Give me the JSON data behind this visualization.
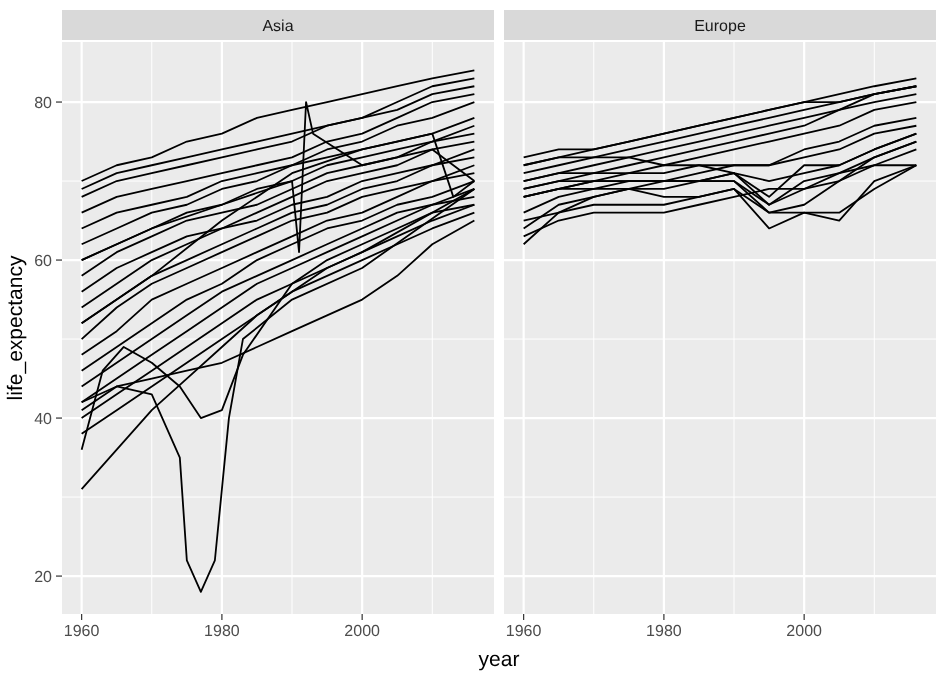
{
  "chart_data": [
    {
      "type": "line",
      "title": "Asia",
      "xlabel": "year",
      "ylabel": "life_expectancy",
      "xlim": [
        1957.2,
        2018.8
      ],
      "ylim": [
        15.2,
        87.6
      ],
      "xticks": [
        1960,
        1980,
        2000
      ],
      "yticks": [
        20,
        40,
        60,
        80
      ],
      "grid": true,
      "x": [
        1960,
        1965,
        1970,
        1975,
        1980,
        1985,
        1990,
        1995,
        2000,
        2005,
        2010,
        2016
      ],
      "series": [
        {
          "color": "#000000",
          "values": [
            70,
            72,
            73,
            75,
            76,
            78,
            79,
            80,
            81,
            82,
            83,
            84
          ]
        },
        {
          "color": "#000000",
          "values": [
            69,
            71,
            72,
            73,
            74,
            75,
            76,
            77,
            78,
            80,
            82,
            83
          ]
        },
        {
          "color": "#000000",
          "values": [
            68,
            70,
            71,
            72,
            73,
            74,
            75,
            77,
            78,
            79,
            81,
            82
          ]
        },
        {
          "color": "#000000",
          "values": [
            66,
            68,
            69,
            70,
            71,
            72,
            73,
            75,
            76,
            78,
            80,
            81
          ]
        },
        {
          "color": "#000000",
          "values": [
            64,
            66,
            67,
            68,
            70,
            71,
            72,
            74,
            75,
            77,
            78,
            80
          ]
        },
        {
          "color": "#000000",
          "values": [
            62,
            64,
            66,
            67,
            69,
            70,
            72,
            73,
            74,
            75,
            76,
            78
          ]
        },
        {
          "color": "#000000",
          "values": [
            60,
            62,
            64,
            66,
            67,
            69,
            70,
            72,
            73,
            74,
            75,
            77
          ]
        },
        {
          "color": "#000000",
          "values": [
            58,
            61,
            63,
            65,
            66,
            67,
            69,
            71,
            72,
            73,
            75,
            76
          ]
        },
        {
          "color": "#000000",
          "values": [
            56,
            59,
            61,
            63,
            64,
            66,
            68,
            70,
            71,
            72,
            74,
            75
          ]
        },
        {
          "color": "#000000",
          "values": [
            54,
            57,
            60,
            62,
            64,
            65,
            67,
            68,
            70,
            71,
            72,
            74
          ]
        },
        {
          "color": "#000000",
          "values": [
            52,
            55,
            58,
            60,
            62,
            64,
            66,
            67,
            69,
            70,
            72,
            73
          ]
        },
        {
          "color": "#000000",
          "values": [
            50,
            54,
            57,
            59,
            61,
            63,
            65,
            66,
            68,
            69,
            70,
            72
          ]
        },
        {
          "color": "#000000",
          "values": [
            48,
            51,
            55,
            57,
            59,
            61,
            63,
            65,
            66,
            68,
            70,
            71
          ]
        },
        {
          "color": "#000000",
          "values": [
            46,
            49,
            52,
            55,
            57,
            60,
            62,
            64,
            65,
            67,
            68,
            70
          ]
        },
        {
          "color": "#000000",
          "values": [
            44,
            47,
            50,
            53,
            56,
            58,
            60,
            62,
            64,
            66,
            67,
            69
          ]
        },
        {
          "color": "#000000",
          "values": [
            42,
            45,
            48,
            51,
            54,
            57,
            59,
            61,
            63,
            65,
            67,
            68
          ]
        },
        {
          "color": "#000000",
          "values": [
            40,
            43,
            46,
            49,
            52,
            55,
            57,
            60,
            62,
            64,
            66,
            67
          ]
        },
        {
          "color": "#000000",
          "values": [
            38,
            41,
            44,
            47,
            50,
            53,
            56,
            58,
            60,
            62,
            64,
            66
          ]
        },
        {
          "color": "#000000",
          "values": [
            42,
            44,
            45,
            46,
            47,
            49,
            51,
            53,
            55,
            58,
            62,
            65
          ]
        },
        {
          "color": "#000000",
          "values": [
            31,
            36,
            41,
            45,
            49,
            53,
            56,
            59,
            61,
            63,
            65,
            67
          ]
        },
        {
          "color": "#000000",
          "x": [
            1960,
            1965,
            1970,
            1974,
            1975,
            1977,
            1979,
            1981,
            1983,
            1990,
            2000,
            2016
          ],
          "values": [
            41,
            44,
            43,
            35,
            22,
            18,
            22,
            40,
            50,
            55,
            59,
            69
          ]
        },
        {
          "color": "#000000",
          "x": [
            1960,
            1963,
            1966,
            1970,
            1974,
            1977,
            1980,
            1983,
            1990,
            2000,
            2016
          ],
          "values": [
            36,
            46,
            49,
            47,
            44,
            40,
            41,
            48,
            57,
            61,
            69
          ]
        },
        {
          "color": "#000000",
          "x": [
            1960,
            1970,
            1980,
            1990,
            1991,
            1992,
            1993,
            2000,
            2010,
            2016
          ],
          "values": [
            60,
            64,
            67,
            70,
            61,
            80,
            76,
            72,
            74,
            70
          ]
        },
        {
          "color": "#000000",
          "x": [
            1960,
            1970,
            1980,
            1990,
            2000,
            2010,
            2013,
            2016
          ],
          "values": [
            52,
            58,
            65,
            71,
            74,
            76,
            68,
            70
          ]
        }
      ]
    },
    {
      "type": "line",
      "title": "Europe",
      "xlim": [
        1957.2,
        2018.8
      ],
      "ylim": [
        15.2,
        87.6
      ],
      "xticks": [
        1960,
        1980,
        2000
      ],
      "yticks": [
        20,
        40,
        60,
        80
      ],
      "grid": true,
      "tick_labels": "x",
      "x": [
        1960,
        1965,
        1970,
        1975,
        1980,
        1985,
        1990,
        1995,
        2000,
        2005,
        2010,
        2016
      ],
      "series": [
        {
          "color": "#000000",
          "values": [
            73,
            74,
            74,
            75,
            76,
            77,
            78,
            79,
            80,
            81,
            82,
            83
          ]
        },
        {
          "color": "#000000",
          "values": [
            72,
            73,
            74,
            75,
            76,
            77,
            78,
            79,
            80,
            80,
            81,
            82
          ]
        },
        {
          "color": "#000000",
          "values": [
            71,
            72,
            73,
            74,
            75,
            76,
            77,
            78,
            79,
            80,
            81,
            82
          ]
        },
        {
          "color": "#000000",
          "values": [
            70,
            71,
            72,
            73,
            74,
            75,
            76,
            77,
            78,
            79,
            81,
            82
          ]
        },
        {
          "color": "#000000",
          "values": [
            69,
            70,
            71,
            72,
            73,
            74,
            75,
            76,
            77,
            79,
            80,
            81
          ]
        },
        {
          "color": "#000000",
          "values": [
            68,
            69,
            70,
            71,
            72,
            73,
            74,
            75,
            76,
            77,
            79,
            80
          ]
        },
        {
          "color": "#000000",
          "values": [
            70,
            71,
            71,
            71,
            71,
            72,
            72,
            72,
            73,
            74,
            76,
            77
          ]
        },
        {
          "color": "#000000",
          "values": [
            69,
            70,
            70,
            70,
            70,
            70,
            71,
            70,
            71,
            72,
            74,
            76
          ]
        },
        {
          "color": "#000000",
          "values": [
            68,
            69,
            70,
            70,
            70,
            70,
            71,
            67,
            70,
            71,
            73,
            75
          ]
        },
        {
          "color": "#000000",
          "values": [
            66,
            68,
            69,
            70,
            70,
            70,
            70,
            66,
            67,
            70,
            73,
            75
          ]
        },
        {
          "color": "#000000",
          "values": [
            64,
            67,
            68,
            69,
            69,
            70,
            70,
            67,
            69,
            70,
            72,
            74
          ]
        },
        {
          "color": "#000000",
          "values": [
            62,
            66,
            68,
            69,
            70,
            71,
            72,
            72,
            74,
            75,
            77,
            78
          ]
        },
        {
          "color": "#000000",
          "values": [
            65,
            66,
            67,
            67,
            67,
            68,
            69,
            66,
            66,
            66,
            69,
            72
          ]
        },
        {
          "color": "#000000",
          "values": [
            68,
            69,
            69,
            69,
            68,
            68,
            69,
            64,
            66,
            65,
            70,
            72
          ]
        },
        {
          "color": "#000000",
          "values": [
            72,
            73,
            73,
            73,
            72,
            72,
            71,
            68,
            72,
            72,
            74,
            76
          ]
        },
        {
          "color": "#000000",
          "values": [
            63,
            65,
            66,
            66,
            66,
            67,
            68,
            69,
            69,
            71,
            72,
            72
          ]
        }
      ]
    }
  ]
}
